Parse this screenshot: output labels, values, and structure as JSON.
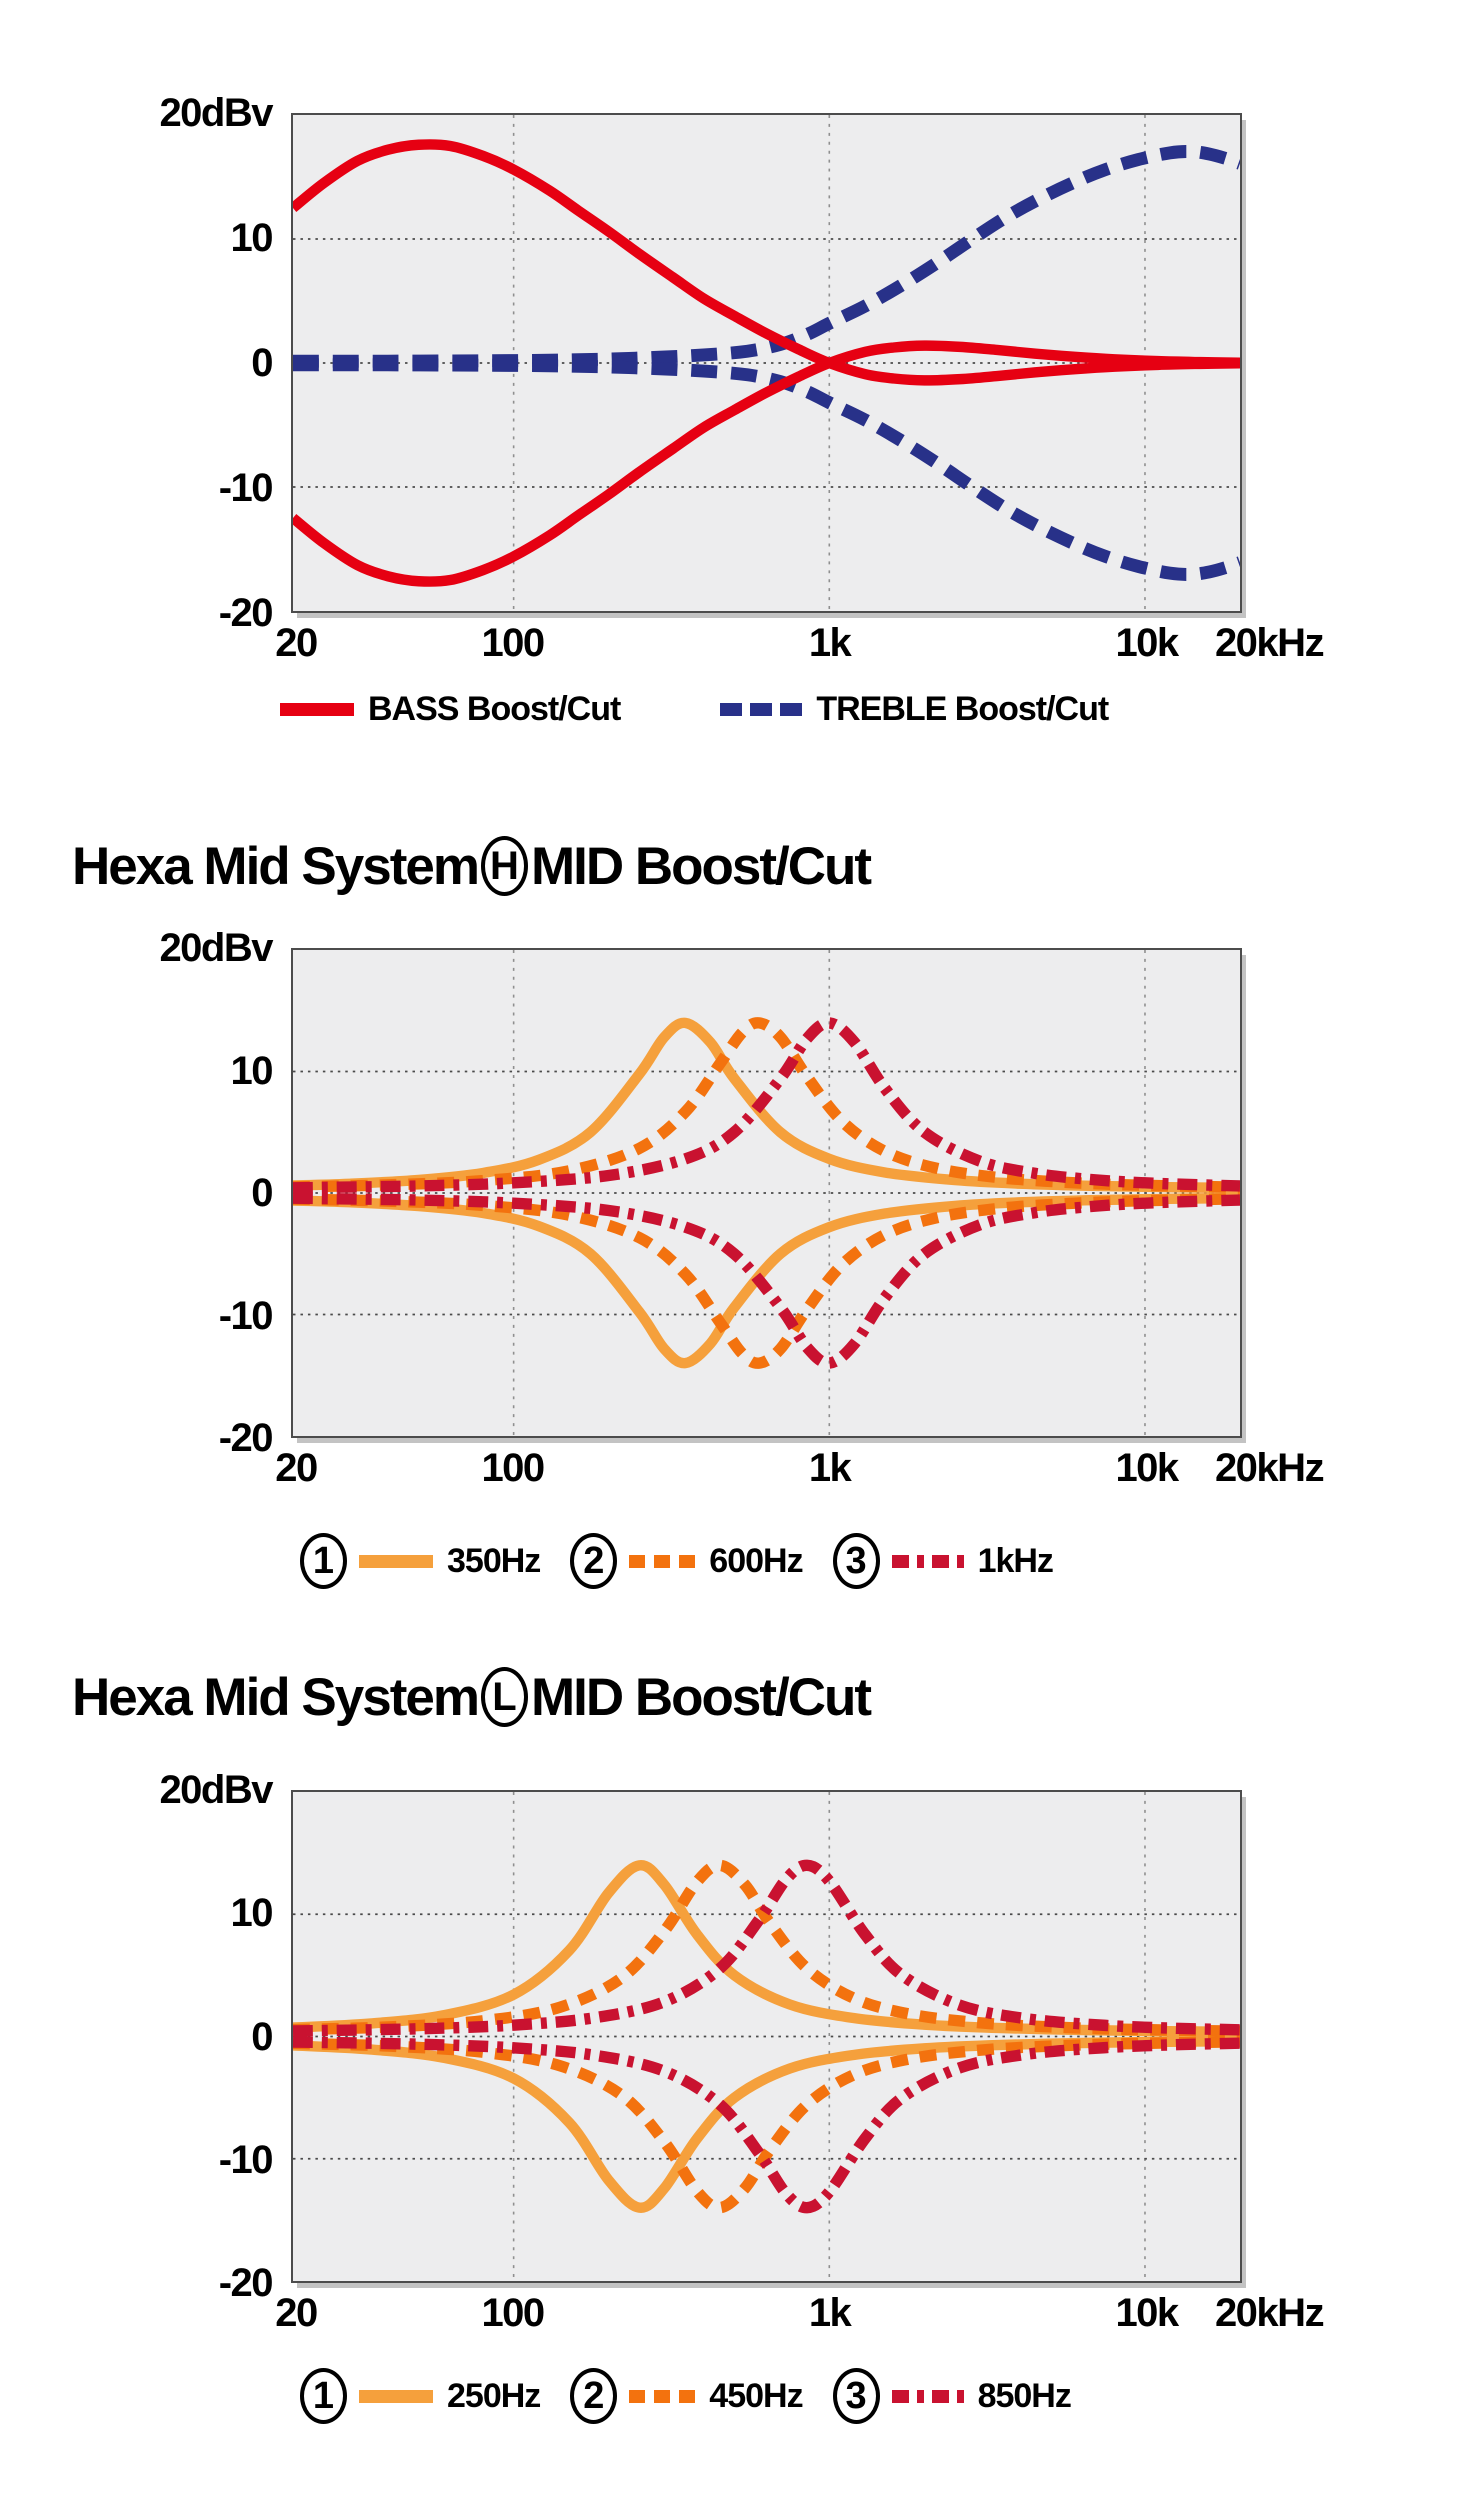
{
  "page": {
    "background": "#ffffff"
  },
  "colors": {
    "red": "#e60012",
    "navy": "#283189",
    "orange_light": "#f5a03c",
    "orange_dark": "#f3720e",
    "crimson": "#c91230",
    "plot_background": "#ededee",
    "grid_dots": "#4a4a4a"
  },
  "chart_data": {
    "note": "see charts[] — three log-frequency line charts"
  },
  "charts": [
    {
      "name": "bass-treble-boost-cut",
      "type": "line",
      "x_scale": "log",
      "x_range_hz": [
        20,
        20000
      ],
      "y_range_db": [
        -20,
        20
      ],
      "y_unit_label": "20dBv",
      "y_ticks": [
        {
          "label": "10",
          "db": 10
        },
        {
          "label": "0",
          "db": 0
        },
        {
          "label": "-10",
          "db": -10
        },
        {
          "label": "-20",
          "db": -20
        }
      ],
      "x_ticks": [
        {
          "label": "20",
          "hz": 20
        },
        {
          "label": "100",
          "hz": 100
        },
        {
          "label": "1k",
          "hz": 1000
        },
        {
          "label": "10k",
          "hz": 10000
        },
        {
          "label": "20kHz",
          "hz": 20000
        }
      ],
      "grid": {
        "h_db": [
          10,
          0,
          -10
        ],
        "v_hz": [
          100,
          1000,
          10000
        ]
      },
      "series": [
        {
          "name": "TREBLE Boost/Cut",
          "color": "#283189",
          "style": "dashed-long",
          "mirror": true,
          "points": [
            [
              20,
              0.15
            ],
            [
              40,
              0.15
            ],
            [
              80,
              0.18
            ],
            [
              150,
              0.25
            ],
            [
              250,
              0.4
            ],
            [
              400,
              0.65
            ],
            [
              550,
              0.95
            ],
            [
              700,
              1.5
            ],
            [
              850,
              2.3
            ],
            [
              1000,
              3.2
            ],
            [
              1300,
              4.6
            ],
            [
              1700,
              6.3
            ],
            [
              2200,
              8.1
            ],
            [
              2800,
              9.9
            ],
            [
              3600,
              11.7
            ],
            [
              4600,
              13.2
            ],
            [
              6000,
              14.6
            ],
            [
              7500,
              15.6
            ],
            [
              9500,
              16.4
            ],
            [
              12000,
              16.95
            ],
            [
              14000,
              17.05
            ],
            [
              16000,
              16.85
            ],
            [
              18000,
              16.5
            ],
            [
              20000,
              16.1
            ]
          ]
        },
        {
          "name": "BASS Boost/Cut",
          "color": "#e60012",
          "style": "solid",
          "mirror": true,
          "points": [
            [
              20,
              12.5
            ],
            [
              25,
              14.5
            ],
            [
              32,
              16.3
            ],
            [
              40,
              17.2
            ],
            [
              50,
              17.6
            ],
            [
              63,
              17.5
            ],
            [
              80,
              16.7
            ],
            [
              100,
              15.6
            ],
            [
              130,
              13.9
            ],
            [
              160,
              12.3
            ],
            [
              200,
              10.6
            ],
            [
              250,
              8.8
            ],
            [
              320,
              6.9
            ],
            [
              400,
              5.2
            ],
            [
              500,
              3.8
            ],
            [
              630,
              2.4
            ],
            [
              800,
              1.1
            ],
            [
              1000,
              0
            ],
            [
              1300,
              -0.9
            ],
            [
              1600,
              -1.25
            ],
            [
              2000,
              -1.4
            ],
            [
              2600,
              -1.3
            ],
            [
              3400,
              -1.05
            ],
            [
              4500,
              -0.75
            ],
            [
              6000,
              -0.5
            ],
            [
              8000,
              -0.3
            ],
            [
              11000,
              -0.15
            ],
            [
              15000,
              -0.07
            ],
            [
              20000,
              -0.02
            ]
          ]
        }
      ],
      "legend": [
        {
          "label": "BASS Boost/Cut",
          "style": "solid",
          "color": "#e60012"
        },
        {
          "label": "TREBLE Boost/Cut",
          "style": "dashed-long",
          "color": "#283189"
        }
      ]
    },
    {
      "name": "hexa-mid-system-h-mid-boost-cut",
      "type": "line",
      "x_scale": "log",
      "title": {
        "prefix": "Hexa Mid System",
        "badge": "H",
        "suffix": "MID Boost/Cut"
      },
      "x_range_hz": [
        20,
        20000
      ],
      "y_range_db": [
        -20,
        20
      ],
      "y_unit_label": "20dBv",
      "y_ticks": [
        {
          "label": "10",
          "db": 10
        },
        {
          "label": "0",
          "db": 0
        },
        {
          "label": "-10",
          "db": -10
        },
        {
          "label": "-20",
          "db": -20
        }
      ],
      "x_ticks": [
        {
          "label": "20",
          "hz": 20
        },
        {
          "label": "100",
          "hz": 100
        },
        {
          "label": "1k",
          "hz": 1000
        },
        {
          "label": "10k",
          "hz": 10000
        },
        {
          "label": "20kHz",
          "hz": 20000
        }
      ],
      "grid": {
        "h_db": [
          10,
          0,
          -10
        ],
        "v_hz": [
          100,
          1000,
          10000
        ]
      },
      "series": [
        {
          "name": "350Hz",
          "color": "#f5a03c",
          "style": "solid",
          "mirror": true,
          "points": [
            [
              20,
              0.62
            ],
            [
              30,
              0.76
            ],
            [
              50,
              1.08
            ],
            [
              80,
              1.65
            ],
            [
              120,
              2.73
            ],
            [
              175,
              5.0
            ],
            [
              250,
              9.78
            ],
            [
              300,
              12.83
            ],
            [
              350,
              14.0
            ],
            [
              420,
              12.4
            ],
            [
              500,
              9.42
            ],
            [
              700,
              5.0
            ],
            [
              1000,
              2.81
            ],
            [
              1500,
              1.69
            ],
            [
              2500,
              1.06
            ],
            [
              4000,
              0.77
            ],
            [
              7000,
              0.58
            ],
            [
              12000,
              0.48
            ],
            [
              20000,
              0.41
            ]
          ]
        },
        {
          "name": "600Hz",
          "color": "#f3720e",
          "style": "dashed",
          "mirror": true,
          "points": [
            [
              20,
              0.5
            ],
            [
              40,
              0.67
            ],
            [
              80,
              1.02
            ],
            [
              150,
              1.83
            ],
            [
              250,
              3.67
            ],
            [
              350,
              6.68
            ],
            [
              450,
              10.63
            ],
            [
              530,
              13.22
            ],
            [
              600,
              14.0
            ],
            [
              700,
              12.83
            ],
            [
              850,
              9.57
            ],
            [
              1100,
              5.88
            ],
            [
              1500,
              3.43
            ],
            [
              2200,
              2.02
            ],
            [
              3500,
              1.25
            ],
            [
              6000,
              0.84
            ],
            [
              10000,
              0.63
            ],
            [
              20000,
              0.48
            ]
          ]
        },
        {
          "name": "1kHz",
          "color": "#c91230",
          "style": "dashdot",
          "mirror": true,
          "points": [
            [
              20,
              0.43
            ],
            [
              50,
              0.58
            ],
            [
              100,
              0.84
            ],
            [
              200,
              1.44
            ],
            [
              350,
              2.81
            ],
            [
              500,
              5.01
            ],
            [
              700,
              9.42
            ],
            [
              850,
              12.71
            ],
            [
              1000,
              14.0
            ],
            [
              1200,
              12.42
            ],
            [
              1500,
              8.61
            ],
            [
              2000,
              5.01
            ],
            [
              3000,
              2.62
            ],
            [
              4500,
              1.61
            ],
            [
              7000,
              1.08
            ],
            [
              11000,
              0.79
            ],
            [
              20000,
              0.58
            ]
          ]
        }
      ],
      "legend": [
        {
          "num": "1",
          "label": "350Hz",
          "style": "solid",
          "color": "#f5a03c"
        },
        {
          "num": "2",
          "label": "600Hz",
          "style": "dashed",
          "color": "#f3720e"
        },
        {
          "num": "3",
          "label": "1kHz",
          "style": "dashdot",
          "color": "#c91230"
        }
      ]
    },
    {
      "name": "hexa-mid-system-l-mid-boost-cut",
      "type": "line",
      "x_scale": "log",
      "title": {
        "prefix": "Hexa Mid System",
        "badge": "L",
        "suffix": "MID Boost/Cut"
      },
      "x_range_hz": [
        20,
        20000
      ],
      "y_range_db": [
        -20,
        20
      ],
      "y_unit_label": "20dBv",
      "y_ticks": [
        {
          "label": "10",
          "db": 10
        },
        {
          "label": "0",
          "db": 0
        },
        {
          "label": "-10",
          "db": -10
        },
        {
          "label": "-20",
          "db": -20
        }
      ],
      "x_ticks": [
        {
          "label": "20",
          "hz": 20
        },
        {
          "label": "100",
          "hz": 100
        },
        {
          "label": "1k",
          "hz": 1000
        },
        {
          "label": "10k",
          "hz": 10000
        },
        {
          "label": "20kHz",
          "hz": 20000
        }
      ],
      "grid": {
        "h_db": [
          10,
          0,
          -10
        ],
        "v_hz": [
          100,
          1000,
          10000
        ]
      },
      "series": [
        {
          "name": "250Hz",
          "color": "#f5a03c",
          "style": "solid",
          "mirror": true,
          "points": [
            [
              20,
              0.73
            ],
            [
              35,
              1.06
            ],
            [
              60,
              1.74
            ],
            [
              100,
              3.43
            ],
            [
              150,
              7.04
            ],
            [
              200,
              11.76
            ],
            [
              250,
              14.0
            ],
            [
              300,
              12.42
            ],
            [
              380,
              8.39
            ],
            [
              500,
              5.01
            ],
            [
              750,
              2.62
            ],
            [
              1200,
              1.5
            ],
            [
              2000,
              0.97
            ],
            [
              3500,
              0.69
            ],
            [
              7000,
              0.51
            ],
            [
              12000,
              0.43
            ],
            [
              20000,
              0.38
            ]
          ]
        },
        {
          "name": "450Hz",
          "color": "#f3720e",
          "style": "dashed",
          "mirror": true,
          "points": [
            [
              20,
              0.56
            ],
            [
              40,
              0.78
            ],
            [
              80,
              1.29
            ],
            [
              140,
              2.39
            ],
            [
              220,
              4.8
            ],
            [
              300,
              8.61
            ],
            [
              380,
              12.62
            ],
            [
              450,
              14.0
            ],
            [
              540,
              12.42
            ],
            [
              650,
              9.24
            ],
            [
              850,
              5.56
            ],
            [
              1200,
              3.11
            ],
            [
              1800,
              1.83
            ],
            [
              3000,
              1.12
            ],
            [
              5500,
              0.74
            ],
            [
              10000,
              0.56
            ],
            [
              20000,
              0.44
            ]
          ]
        },
        {
          "name": "850Hz",
          "color": "#c91230",
          "style": "dashdot",
          "mirror": true,
          "points": [
            [
              20,
              0.45
            ],
            [
              50,
              0.63
            ],
            [
              100,
              0.93
            ],
            [
              180,
              1.53
            ],
            [
              300,
              2.84
            ],
            [
              450,
              5.56
            ],
            [
              600,
              9.57
            ],
            [
              730,
              12.86
            ],
            [
              850,
              14.0
            ],
            [
              1000,
              12.71
            ],
            [
              1300,
              8.32
            ],
            [
              1700,
              5.01
            ],
            [
              2600,
              2.55
            ],
            [
              4200,
              1.46
            ],
            [
              7500,
              0.91
            ],
            [
              13000,
              0.66
            ],
            [
              20000,
              0.55
            ]
          ]
        }
      ],
      "legend": [
        {
          "num": "1",
          "label": "250Hz",
          "style": "solid",
          "color": "#f5a03c"
        },
        {
          "num": "2",
          "label": "450Hz",
          "style": "dashed",
          "color": "#f3720e"
        },
        {
          "num": "3",
          "label": "850Hz",
          "style": "dashdot",
          "color": "#c91230"
        }
      ]
    }
  ]
}
